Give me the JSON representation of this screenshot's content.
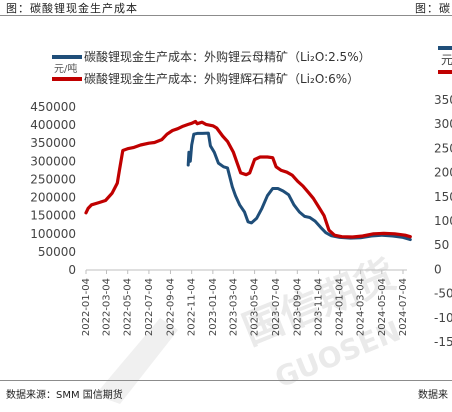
{
  "header": {
    "left_title": "图：碳酸锂现金生产成本",
    "right_title": "图：碳"
  },
  "footer": {
    "left_source": "数据来源：SMM  国信期货",
    "right_source": "数据来"
  },
  "watermark": {
    "cn": "国信期货",
    "en": "GUOSEN"
  },
  "colors": {
    "mica_series": "#1f4e79",
    "spodumene_series": "#c00000"
  },
  "chart_data": {
    "type": "line",
    "unit_label": "元/吨",
    "ylim": [
      0,
      450000
    ],
    "yticks": [
      0,
      50000,
      100000,
      150000,
      200000,
      250000,
      300000,
      350000,
      400000,
      450000
    ],
    "xticks": [
      "2022-01-04",
      "2022-03-04",
      "2022-05-04",
      "2022-07-04",
      "2022-09-04",
      "2022-11-04",
      "2023-01-04",
      "2023-03-04",
      "2023-05-04",
      "2023-07-04",
      "2023-09-04",
      "2023-11-04",
      "2024-01-04",
      "2024-03-04",
      "2024-05-04",
      "2024-07-04"
    ],
    "grid": false,
    "legend_position": "top-left",
    "series": [
      {
        "name": "碳酸锂现金生产成本：外购锂云母精矿（Li₂O:2.5%）",
        "color": "#1f4e79",
        "points": [
          [
            "2022-10-25",
            290000
          ],
          [
            "2022-10-27",
            325000
          ],
          [
            "2022-10-31",
            300000
          ],
          [
            "2022-11-04",
            345000
          ],
          [
            "2022-11-10",
            375000
          ],
          [
            "2022-11-20",
            377000
          ],
          [
            "2022-12-05",
            377000
          ],
          [
            "2022-12-22",
            378000
          ],
          [
            "2022-12-28",
            343000
          ],
          [
            "2023-01-08",
            325000
          ],
          [
            "2023-01-20",
            295000
          ],
          [
            "2023-02-04",
            285000
          ],
          [
            "2023-02-15",
            282000
          ],
          [
            "2023-03-01",
            230000
          ],
          [
            "2023-03-10",
            205000
          ],
          [
            "2023-03-22",
            180000
          ],
          [
            "2023-04-05",
            160000
          ],
          [
            "2023-04-15",
            133000
          ],
          [
            "2023-04-25",
            130000
          ],
          [
            "2023-05-10",
            143000
          ],
          [
            "2023-05-25",
            170000
          ],
          [
            "2023-06-10",
            205000
          ],
          [
            "2023-06-25",
            225000
          ],
          [
            "2023-07-10",
            225000
          ],
          [
            "2023-07-25",
            218000
          ],
          [
            "2023-08-10",
            208000
          ],
          [
            "2023-08-25",
            180000
          ],
          [
            "2023-09-10",
            160000
          ],
          [
            "2023-09-25",
            148000
          ],
          [
            "2023-10-10",
            145000
          ],
          [
            "2023-10-25",
            135000
          ],
          [
            "2023-11-10",
            118000
          ],
          [
            "2023-11-25",
            103000
          ],
          [
            "2023-12-10",
            95000
          ],
          [
            "2024-01-04",
            90000
          ],
          [
            "2024-02-04",
            88000
          ],
          [
            "2024-03-04",
            89000
          ],
          [
            "2024-04-04",
            94000
          ],
          [
            "2024-05-04",
            96000
          ],
          [
            "2024-06-04",
            94000
          ],
          [
            "2024-07-04",
            90000
          ],
          [
            "2024-07-25",
            84000
          ]
        ]
      },
      {
        "name": "碳酸锂现金生产成本：外购锂辉石精矿（Li₂O:6%）",
        "color": "#c00000",
        "points": [
          [
            "2022-01-04",
            158000
          ],
          [
            "2022-01-10",
            170000
          ],
          [
            "2022-01-20",
            180000
          ],
          [
            "2022-02-10",
            186000
          ],
          [
            "2022-03-01",
            192000
          ],
          [
            "2022-03-20",
            212000
          ],
          [
            "2022-04-04",
            240000
          ],
          [
            "2022-04-10",
            275000
          ],
          [
            "2022-04-20",
            330000
          ],
          [
            "2022-05-04",
            335000
          ],
          [
            "2022-05-20",
            338000
          ],
          [
            "2022-06-10",
            345000
          ],
          [
            "2022-07-04",
            350000
          ],
          [
            "2022-07-20",
            352000
          ],
          [
            "2022-08-10",
            360000
          ],
          [
            "2022-08-25",
            375000
          ],
          [
            "2022-09-10",
            385000
          ],
          [
            "2022-09-25",
            390000
          ],
          [
            "2022-10-10",
            397000
          ],
          [
            "2022-10-25",
            402000
          ],
          [
            "2022-11-04",
            405000
          ],
          [
            "2022-11-15",
            410000
          ],
          [
            "2022-11-20",
            404000
          ],
          [
            "2022-12-04",
            408000
          ],
          [
            "2022-12-15",
            402000
          ],
          [
            "2023-01-04",
            398000
          ],
          [
            "2023-01-15",
            392000
          ],
          [
            "2023-02-01",
            370000
          ],
          [
            "2023-02-15",
            355000
          ],
          [
            "2023-03-04",
            325000
          ],
          [
            "2023-03-15",
            295000
          ],
          [
            "2023-03-25",
            268000
          ],
          [
            "2023-04-10",
            263000
          ],
          [
            "2023-04-20",
            268000
          ],
          [
            "2023-05-04",
            305000
          ],
          [
            "2023-05-20",
            312000
          ],
          [
            "2023-06-10",
            312000
          ],
          [
            "2023-06-25",
            310000
          ],
          [
            "2023-07-05",
            285000
          ],
          [
            "2023-07-20",
            275000
          ],
          [
            "2023-08-05",
            270000
          ],
          [
            "2023-08-20",
            262000
          ],
          [
            "2023-09-05",
            245000
          ],
          [
            "2023-09-20",
            232000
          ],
          [
            "2023-10-05",
            215000
          ],
          [
            "2023-10-20",
            198000
          ],
          [
            "2023-11-04",
            175000
          ],
          [
            "2023-11-20",
            150000
          ],
          [
            "2023-12-04",
            110000
          ],
          [
            "2023-12-20",
            96000
          ],
          [
            "2024-01-10",
            92000
          ],
          [
            "2024-02-10",
            91000
          ],
          [
            "2024-03-10",
            94000
          ],
          [
            "2024-04-10",
            100000
          ],
          [
            "2024-05-10",
            101000
          ],
          [
            "2024-06-10",
            100000
          ],
          [
            "2024-07-10",
            96000
          ],
          [
            "2024-07-25",
            92000
          ]
        ]
      }
    ],
    "second_chart_partial": {
      "unit_fragment": "元",
      "yticks": [
        "350",
        "300",
        "250",
        "200",
        "150",
        "100",
        "50",
        "0",
        "-50",
        "-100",
        "-150"
      ],
      "legend_colors": [
        "#1f4e79",
        "#c00000"
      ]
    }
  }
}
